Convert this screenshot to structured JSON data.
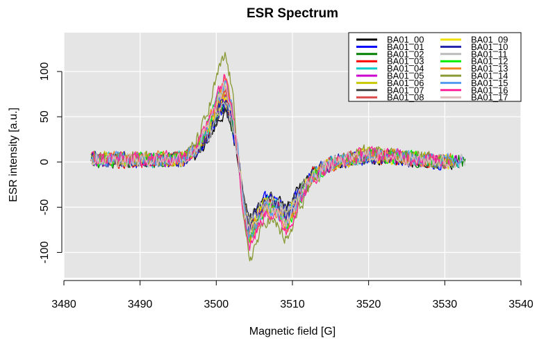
{
  "chart_data": {
    "type": "line",
    "title": "ESR Spectrum",
    "xlabel": "Magnetic field [G]",
    "ylabel": "ESR intensity [a.u.]",
    "xlim": [
      3480,
      3540
    ],
    "ylim": [
      -128,
      143
    ],
    "xticks": [
      3480,
      3490,
      3500,
      3510,
      3520,
      3530,
      3540
    ],
    "yticks": [
      -100,
      -50,
      0,
      50,
      100
    ],
    "grid": true,
    "background": "#e5e5e5",
    "legend_placement": "top-right",
    "legend_columns": 2,
    "x_range_of_data": [
      3483.5,
      3533
    ],
    "shape_template": {
      "x": [
        3483.5,
        3490,
        3496,
        3497.5,
        3499,
        3500.3,
        3501.2,
        3502,
        3502.8,
        3503.6,
        3504.4,
        3505.3,
        3506.5,
        3508,
        3509.3,
        3510.8,
        3512.5,
        3515,
        3520,
        3525,
        3530,
        3533
      ],
      "y": [
        4,
        3,
        5,
        20,
        48,
        85,
        100,
        72,
        15,
        -55,
        -84,
        -70,
        -50,
        -55,
        -70,
        -42,
        -18,
        -2,
        10,
        6,
        0,
        2
      ]
    },
    "series": [
      {
        "name": "BA01_00",
        "color": "#000000",
        "peak": 55,
        "trough": -65
      },
      {
        "name": "BA01_01",
        "color": "#0000ff",
        "peak": 60,
        "trough": -68
      },
      {
        "name": "BA01_02",
        "color": "#008000",
        "peak": 65,
        "trough": -72
      },
      {
        "name": "BA01_03",
        "color": "#ff0000",
        "peak": 70,
        "trough": -75
      },
      {
        "name": "BA01_04",
        "color": "#00cccc",
        "peak": 72,
        "trough": -76
      },
      {
        "name": "BA01_05",
        "color": "#cc00cc",
        "peak": 75,
        "trough": -78
      },
      {
        "name": "BA01_06",
        "color": "#c8c800",
        "peak": 78,
        "trough": -80
      },
      {
        "name": "BA01_07",
        "color": "#444444",
        "peak": 60,
        "trough": -66
      },
      {
        "name": "BA01_08",
        "color": "#d94a4a",
        "peak": 80,
        "trough": -82
      },
      {
        "name": "BA01_09",
        "color": "#f0e000",
        "peak": 72,
        "trough": -70
      },
      {
        "name": "BA01_10",
        "color": "#2222aa",
        "peak": 68,
        "trough": -72
      },
      {
        "name": "BA01_11",
        "color": "#bbbbbb",
        "peak": 65,
        "trough": -70
      },
      {
        "name": "BA01_12",
        "color": "#00ee00",
        "peak": 88,
        "trough": -85
      },
      {
        "name": "BA01_13",
        "color": "#ee8822",
        "peak": 90,
        "trough": -88
      },
      {
        "name": "BA01_14",
        "color": "#889933",
        "peak": 118,
        "trough": -107
      },
      {
        "name": "BA01_15",
        "color": "#5599ee",
        "peak": 85,
        "trough": -84
      },
      {
        "name": "BA01_16",
        "color": "#ff2299",
        "peak": 95,
        "trough": -92
      },
      {
        "name": "BA01_17",
        "color": "#ddbbbb",
        "peak": 82,
        "trough": -80
      }
    ]
  }
}
